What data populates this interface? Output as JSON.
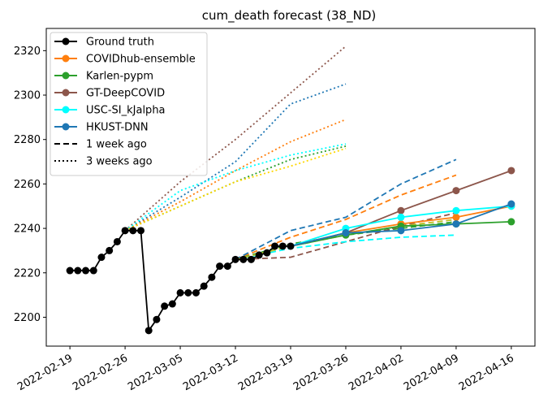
{
  "chart_data": {
    "type": "line",
    "title": "cum_death forecast (38_ND)",
    "xlabel": "",
    "ylabel": "",
    "x_ticks": [
      "2022-02-19",
      "2022-02-26",
      "2022-03-05",
      "2022-03-12",
      "2022-03-19",
      "2022-03-26",
      "2022-04-02",
      "2022-04-09",
      "2022-04-16"
    ],
    "y_ticks": [
      2200,
      2220,
      2240,
      2260,
      2280,
      2300,
      2320
    ],
    "xlim": [
      "2022-02-16",
      "2022-04-19"
    ],
    "ylim": [
      2187,
      2330
    ],
    "grid": false,
    "legend_position": "top-left",
    "legend": [
      {
        "label": "Ground truth",
        "color": "#000000",
        "style": "solid",
        "marker": true
      },
      {
        "label": "COVIDhub-ensemble",
        "color": "#ff7f0e",
        "style": "solid",
        "marker": true
      },
      {
        "label": "Karlen-pypm",
        "color": "#2ca02c",
        "style": "solid",
        "marker": true
      },
      {
        "label": "GT-DeepCOVID",
        "color": "#8c564b",
        "style": "solid",
        "marker": true
      },
      {
        "label": "USC-SI_kJalpha",
        "color": "#00ffff",
        "style": "solid",
        "marker": true
      },
      {
        "label": "HKUST-DNN",
        "color": "#1f77b4",
        "style": "solid",
        "marker": true
      },
      {
        "label": "1 week ago",
        "color": "#000000",
        "style": "dashed",
        "marker": false
      },
      {
        "label": "3 weeks ago",
        "color": "#000000",
        "style": "dotted",
        "marker": false
      }
    ],
    "ground_truth": {
      "name": "Ground truth",
      "color": "#000000",
      "points": [
        [
          "2022-02-19",
          2221
        ],
        [
          "2022-02-20",
          2221
        ],
        [
          "2022-02-21",
          2221
        ],
        [
          "2022-02-22",
          2221
        ],
        [
          "2022-02-23",
          2227
        ],
        [
          "2022-02-24",
          2230
        ],
        [
          "2022-02-25",
          2234
        ],
        [
          "2022-02-26",
          2239
        ],
        [
          "2022-02-27",
          2239
        ],
        [
          "2022-02-28",
          2239
        ],
        [
          "2022-03-01",
          2194
        ],
        [
          "2022-03-02",
          2199
        ],
        [
          "2022-03-03",
          2205
        ],
        [
          "2022-03-04",
          2206
        ],
        [
          "2022-03-05",
          2211
        ],
        [
          "2022-03-06",
          2211
        ],
        [
          "2022-03-07",
          2211
        ],
        [
          "2022-03-08",
          2214
        ],
        [
          "2022-03-09",
          2218
        ],
        [
          "2022-03-10",
          2223
        ],
        [
          "2022-03-11",
          2223
        ],
        [
          "2022-03-12",
          2226
        ],
        [
          "2022-03-13",
          2226
        ],
        [
          "2022-03-14",
          2226
        ],
        [
          "2022-03-15",
          2228
        ],
        [
          "2022-03-16",
          2229
        ],
        [
          "2022-03-17",
          2232
        ],
        [
          "2022-03-18",
          2232
        ],
        [
          "2022-03-19",
          2232
        ]
      ]
    },
    "series": [
      {
        "name": "COVIDhub-ensemble",
        "color": "#ff7f0e",
        "style": "solid",
        "markers": true,
        "points": [
          [
            "2022-03-19",
            2232
          ],
          [
            "2022-03-26",
            2238
          ],
          [
            "2022-04-02",
            2242
          ],
          [
            "2022-04-09",
            2245
          ],
          [
            "2022-04-16",
            2250
          ]
        ]
      },
      {
        "name": "Karlen-pypm",
        "color": "#2ca02c",
        "style": "solid",
        "markers": true,
        "points": [
          [
            "2022-03-19",
            2232
          ],
          [
            "2022-03-26",
            2237
          ],
          [
            "2022-04-02",
            2241
          ],
          [
            "2022-04-09",
            2242
          ],
          [
            "2022-04-16",
            2243
          ]
        ]
      },
      {
        "name": "GT-DeepCOVID",
        "color": "#8c564b",
        "style": "solid",
        "markers": true,
        "points": [
          [
            "2022-03-19",
            2232
          ],
          [
            "2022-03-26",
            2238
          ],
          [
            "2022-04-02",
            2248
          ],
          [
            "2022-04-09",
            2257
          ],
          [
            "2022-04-16",
            2266
          ]
        ]
      },
      {
        "name": "USC-SI_kJalpha",
        "color": "#00ffff",
        "style": "solid",
        "markers": true,
        "points": [
          [
            "2022-03-19",
            2232
          ],
          [
            "2022-03-26",
            2240
          ],
          [
            "2022-04-02",
            2245
          ],
          [
            "2022-04-09",
            2248
          ],
          [
            "2022-04-16",
            2250
          ]
        ]
      },
      {
        "name": "HKUST-DNN",
        "color": "#1f77b4",
        "style": "solid",
        "markers": true,
        "points": [
          [
            "2022-03-19",
            2232
          ],
          [
            "2022-03-26",
            2238
          ],
          [
            "2022-04-02",
            2239
          ],
          [
            "2022-04-09",
            2242
          ],
          [
            "2022-04-16",
            2251
          ]
        ]
      },
      {
        "name": "COVIDhub-ensemble",
        "color": "#ff7f0e",
        "style": "dashed",
        "markers": false,
        "points": [
          [
            "2022-03-12",
            2226
          ],
          [
            "2022-03-19",
            2236
          ],
          [
            "2022-03-26",
            2244
          ],
          [
            "2022-04-02",
            2255
          ],
          [
            "2022-04-09",
            2264
          ]
        ]
      },
      {
        "name": "Karlen-pypm",
        "color": "#2ca02c",
        "style": "dashed",
        "markers": false,
        "points": [
          [
            "2022-03-12",
            2226
          ],
          [
            "2022-03-19",
            2233
          ],
          [
            "2022-03-26",
            2237
          ],
          [
            "2022-04-02",
            2240
          ],
          [
            "2022-04-09",
            2243
          ]
        ]
      },
      {
        "name": "GT-DeepCOVID",
        "color": "#8c564b",
        "style": "dashed",
        "markers": false,
        "points": [
          [
            "2022-03-12",
            2226
          ],
          [
            "2022-03-19",
            2227
          ],
          [
            "2022-03-26",
            2234
          ],
          [
            "2022-04-02",
            2241
          ],
          [
            "2022-04-09",
            2247
          ]
        ]
      },
      {
        "name": "USC-SI_kJalpha",
        "color": "#00ffff",
        "style": "dashed",
        "markers": false,
        "points": [
          [
            "2022-03-12",
            2226
          ],
          [
            "2022-03-19",
            2231
          ],
          [
            "2022-03-26",
            2234
          ],
          [
            "2022-04-02",
            2236
          ],
          [
            "2022-04-09",
            2237
          ]
        ]
      },
      {
        "name": "HKUST-DNN",
        "color": "#1f77b4",
        "style": "dashed",
        "markers": false,
        "points": [
          [
            "2022-03-12",
            2226
          ],
          [
            "2022-03-19",
            2239
          ],
          [
            "2022-03-26",
            2245
          ],
          [
            "2022-04-02",
            2260
          ],
          [
            "2022-04-09",
            2271
          ]
        ]
      },
      {
        "name": "",
        "color": "#bcbd22",
        "style": "dashed",
        "markers": false,
        "points": [
          [
            "2022-03-12",
            2226
          ],
          [
            "2022-03-19",
            2232
          ],
          [
            "2022-03-26",
            2237
          ],
          [
            "2022-04-02",
            2241
          ],
          [
            "2022-04-09",
            2244
          ]
        ]
      },
      {
        "name": "GT-DeepCOVID",
        "color": "#8c564b",
        "style": "dotted",
        "markers": false,
        "points": [
          [
            "2022-02-26",
            2239
          ],
          [
            "2022-03-05",
            2261
          ],
          [
            "2022-03-12",
            2280
          ],
          [
            "2022-03-19",
            2301
          ],
          [
            "2022-03-26",
            2322
          ]
        ]
      },
      {
        "name": "HKUST-DNN",
        "color": "#1f77b4",
        "style": "dotted",
        "markers": false,
        "points": [
          [
            "2022-02-26",
            2239
          ],
          [
            "2022-03-05",
            2254
          ],
          [
            "2022-03-12",
            2270
          ],
          [
            "2022-03-19",
            2296
          ],
          [
            "2022-03-26",
            2305
          ]
        ]
      },
      {
        "name": "COVIDhub-ensemble",
        "color": "#ff7f0e",
        "style": "dotted",
        "markers": false,
        "points": [
          [
            "2022-02-26",
            2239
          ],
          [
            "2022-03-05",
            2252
          ],
          [
            "2022-03-12",
            2266
          ],
          [
            "2022-03-19",
            2279
          ],
          [
            "2022-03-26",
            2289
          ]
        ]
      },
      {
        "name": "USC-SI_kJalpha",
        "color": "#00ffff",
        "style": "dotted",
        "markers": false,
        "points": [
          [
            "2022-02-26",
            2239
          ],
          [
            "2022-03-05",
            2257
          ],
          [
            "2022-03-12",
            2266
          ],
          [
            "2022-03-19",
            2273
          ],
          [
            "2022-03-26",
            2278
          ]
        ]
      },
      {
        "name": "Karlen-pypm",
        "color": "#2ca02c",
        "style": "dotted",
        "markers": false,
        "points": [
          [
            "2022-02-26",
            2239
          ],
          [
            "2022-03-05",
            2250
          ],
          [
            "2022-03-12",
            2261
          ],
          [
            "2022-03-19",
            2271
          ],
          [
            "2022-03-26",
            2277
          ]
        ]
      },
      {
        "name": "",
        "color": "#ffd700",
        "style": "dotted",
        "markers": false,
        "points": [
          [
            "2022-02-26",
            2239
          ],
          [
            "2022-03-05",
            2250
          ],
          [
            "2022-03-12",
            2261
          ],
          [
            "2022-03-19",
            2268
          ],
          [
            "2022-03-26",
            2276
          ]
        ]
      }
    ]
  }
}
